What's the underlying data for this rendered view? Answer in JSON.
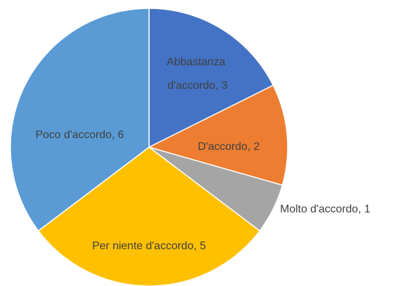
{
  "chart_data": {
    "type": "pie",
    "labels": [
      "Abbastanza d'accordo, 3",
      "D'accordo, 2",
      "Molto d'accordo, 1",
      "Per niente d'accordo, 5",
      "Poco d'accordo, 6"
    ],
    "values": [
      3,
      2,
      1,
      5,
      6
    ],
    "colors": [
      "#4472c4",
      "#ed7d31",
      "#a5a5a5",
      "#ffc000",
      "#5b9bd5"
    ]
  }
}
